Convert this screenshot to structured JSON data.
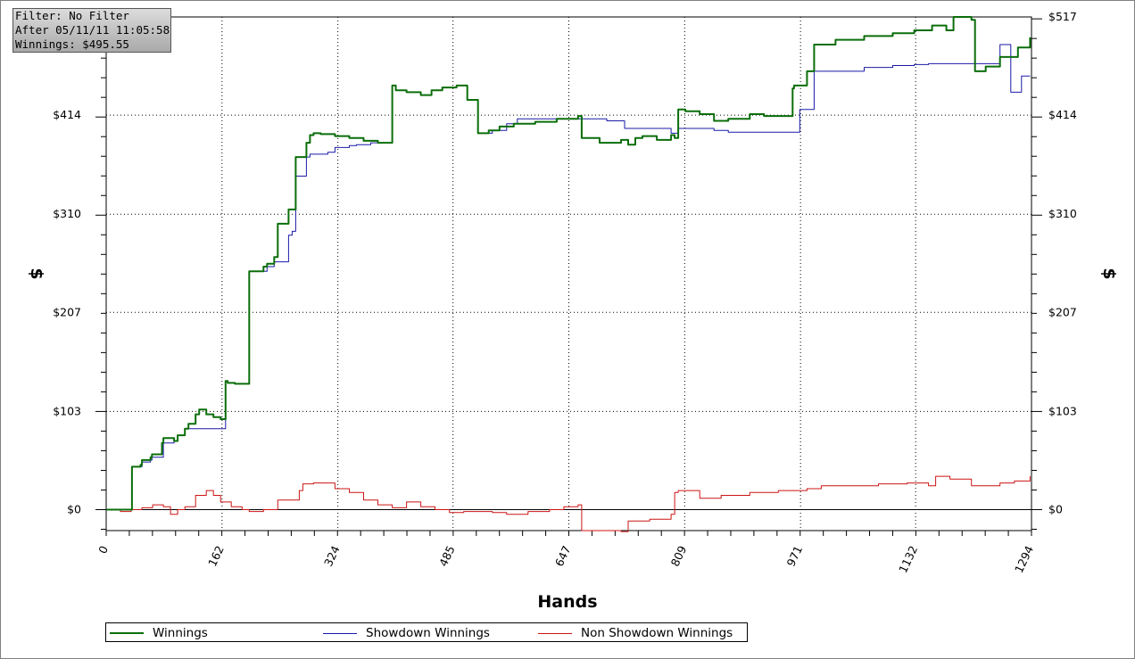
{
  "info_box": {
    "filter": "Filter: No Filter",
    "after": "After 05/11/11 11:05:58",
    "winnings": "Winnings: $495.55"
  },
  "chart_data": {
    "type": "line",
    "xlabel": "Hands",
    "ylabel": "$",
    "xlim": [
      0,
      1294
    ],
    "ylim": [
      -22,
      517
    ],
    "x_ticks": [
      0,
      162,
      324,
      485,
      647,
      809,
      971,
      1132,
      1294
    ],
    "y_ticks": [
      0,
      103,
      207,
      310,
      414,
      517
    ],
    "y_tick_labels": [
      "$0",
      "$103",
      "$207",
      "$310",
      "$414",
      "$517"
    ],
    "grid": true,
    "legend_position": "bottom",
    "series": [
      {
        "name": "Winnings",
        "color": "#0b6e0b",
        "x": [
          0,
          35,
          36,
          48,
          50,
          62,
          64,
          78,
          80,
          95,
          100,
          110,
          115,
          125,
          130,
          140,
          150,
          160,
          167,
          170,
          180,
          200,
          220,
          225,
          235,
          240,
          255,
          265,
          280,
          285,
          290,
          300,
          320,
          340,
          360,
          380,
          400,
          405,
          420,
          440,
          455,
          470,
          490,
          505,
          520,
          535,
          550,
          570,
          600,
          630,
          660,
          665,
          690,
          720,
          730,
          740,
          750,
          770,
          790,
          795,
          800,
          810,
          830,
          850,
          870,
          900,
          920,
          960,
          962,
          980,
          990,
          1020,
          1060,
          1100,
          1130,
          1155,
          1175,
          1185,
          1210,
          1215,
          1230,
          1250,
          1275,
          1292
        ],
        "y": [
          0,
          0,
          45,
          47,
          52,
          55,
          58,
          70,
          75,
          72,
          78,
          85,
          90,
          100,
          105,
          100,
          97,
          95,
          135,
          133,
          132,
          250,
          255,
          258,
          265,
          300,
          315,
          370,
          385,
          393,
          395,
          394,
          392,
          390,
          387,
          385,
          445,
          440,
          438,
          435,
          440,
          443,
          445,
          430,
          395,
          398,
          402,
          405,
          407,
          410,
          413,
          390,
          385,
          388,
          383,
          390,
          392,
          388,
          393,
          390,
          420,
          418,
          415,
          408,
          410,
          415,
          413,
          442,
          445,
          460,
          488,
          493,
          497,
          500,
          503,
          508,
          503,
          517,
          514,
          460,
          465,
          475,
          485,
          495.55
        ]
      },
      {
        "name": "Showdown Winnings",
        "color": "#1a1aa8",
        "x": [
          0,
          35,
          36,
          50,
          62,
          64,
          80,
          95,
          100,
          110,
          130,
          140,
          150,
          160,
          167,
          170,
          180,
          200,
          220,
          225,
          235,
          255,
          260,
          265,
          280,
          285,
          300,
          310,
          320,
          340,
          350,
          370,
          400,
          405,
          420,
          440,
          455,
          470,
          490,
          505,
          520,
          540,
          560,
          575,
          600,
          640,
          660,
          700,
          725,
          760,
          790,
          800,
          810,
          850,
          870,
          900,
          930,
          955,
          970,
          990,
          1060,
          1100,
          1130,
          1150,
          1200,
          1235,
          1250,
          1260,
          1265,
          1280,
          1292
        ],
        "y": [
          0,
          0,
          45,
          50,
          52,
          55,
          70,
          72,
          78,
          85,
          85,
          85,
          85,
          85,
          135,
          133,
          132,
          250,
          250,
          255,
          260,
          288,
          292,
          350,
          370,
          373,
          373,
          375,
          380,
          382,
          383,
          385,
          445,
          440,
          438,
          435,
          440,
          443,
          445,
          430,
          395,
          398,
          405,
          410,
          410,
          410,
          410,
          408,
          400,
          400,
          395,
          400,
          400,
          398,
          396,
          396,
          396,
          396,
          420,
          460,
          464,
          466,
          467,
          468,
          468,
          468,
          488,
          488,
          438,
          455,
          455
        ]
      },
      {
        "name": "Non Showdown Winnings",
        "color": "#cc1414",
        "x": [
          0,
          20,
          35,
          50,
          65,
          80,
          90,
          100,
          110,
          125,
          140,
          150,
          160,
          175,
          190,
          200,
          220,
          240,
          270,
          275,
          290,
          320,
          340,
          360,
          380,
          400,
          420,
          440,
          460,
          480,
          500,
          520,
          540,
          560,
          590,
          620,
          640,
          660,
          665,
          690,
          720,
          730,
          760,
          790,
          795,
          800,
          830,
          860,
          900,
          940,
          980,
          1000,
          1040,
          1080,
          1100,
          1120,
          1150,
          1160,
          1180,
          1210,
          1230,
          1250,
          1270,
          1292
        ],
        "y": [
          0,
          -2,
          0,
          2,
          5,
          3,
          -5,
          0,
          3,
          15,
          20,
          15,
          8,
          3,
          0,
          -2,
          0,
          10,
          20,
          27,
          28,
          22,
          18,
          10,
          5,
          2,
          8,
          3,
          0,
          -3,
          -2,
          -2,
          -3,
          -5,
          -2,
          0,
          3,
          5,
          -22,
          -22,
          -23,
          -12,
          -10,
          -5,
          18,
          20,
          12,
          15,
          18,
          20,
          22,
          25,
          25,
          27,
          27,
          28,
          25,
          35,
          32,
          25,
          25,
          28,
          30,
          35
        ]
      }
    ]
  }
}
